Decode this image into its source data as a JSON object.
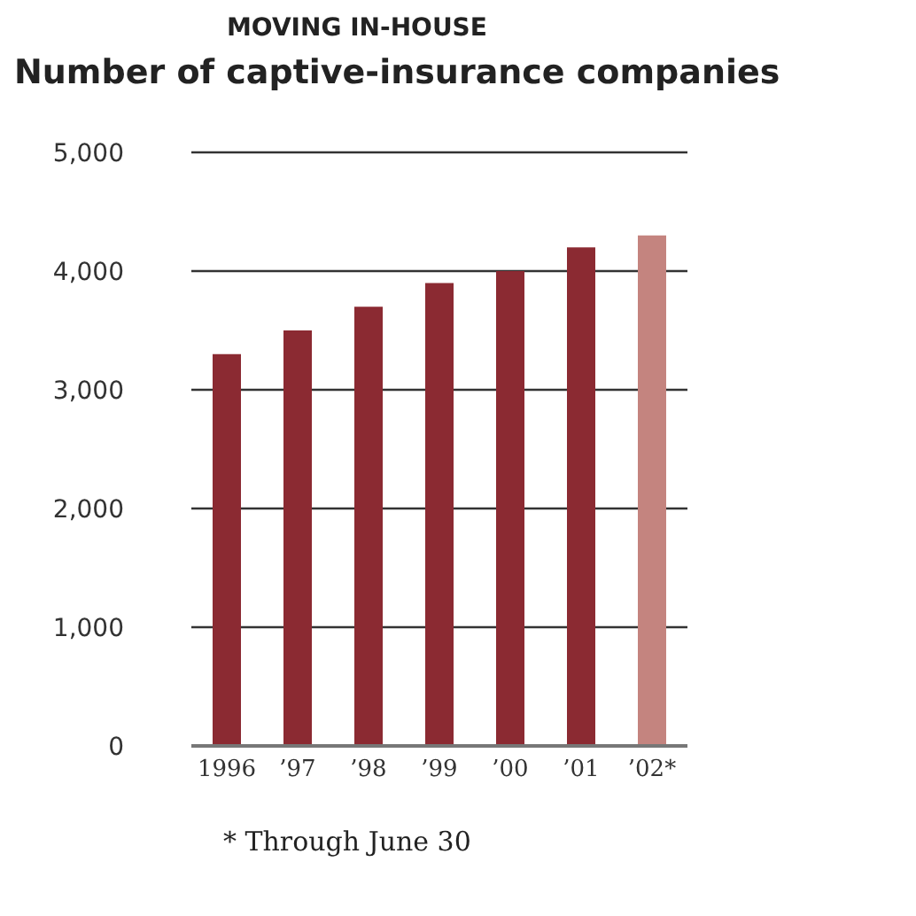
{
  "chart_data": {
    "type": "bar",
    "title": "MOVING IN-HOUSE",
    "subtitle": "Number of captive-insurance companies",
    "categories": [
      "1996",
      "’97",
      "’98",
      "’99",
      "’00",
      "’01",
      "’02*"
    ],
    "values": [
      3300,
      3500,
      3700,
      3900,
      4000,
      4200,
      4300
    ],
    "colors": [
      "#8b2a32",
      "#8b2a32",
      "#8b2a32",
      "#8b2a32",
      "#8b2a32",
      "#8b2a32",
      "#c4847f"
    ],
    "ylim": [
      0,
      5000
    ],
    "yticks": [
      {
        "value": 0,
        "label": "0"
      },
      {
        "value": 1000,
        "label": "1,000"
      },
      {
        "value": 2000,
        "label": "2,000"
      },
      {
        "value": 3000,
        "label": "3,000"
      },
      {
        "value": 4000,
        "label": "4,000"
      },
      {
        "value": 5000,
        "label": "5,000"
      }
    ],
    "grid": "y",
    "annotations": [
      "* Through June 30"
    ]
  }
}
